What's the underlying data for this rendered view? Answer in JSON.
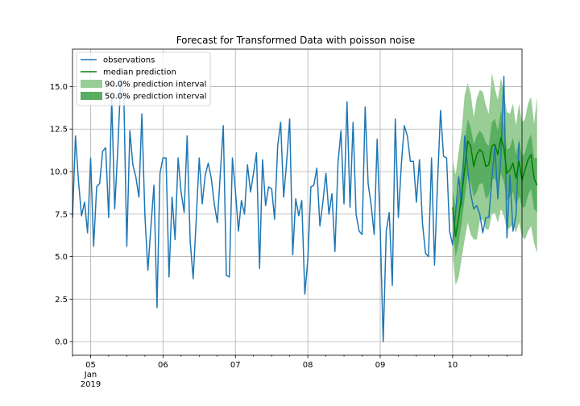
{
  "chart_data": {
    "type": "line",
    "title": "Forecast for Transformed Data with poisson noise",
    "xlabel": "",
    "ylabel": "",
    "grid": true,
    "legend_position": "top-left",
    "x_axis": {
      "type": "datetime",
      "range": [
        "2019-01-04 18:00",
        "2019-01-10 23:00"
      ],
      "tick_labels": [
        {
          "x": "2019-01-05 00:00",
          "label": "05",
          "sub": [
            "Jan",
            "2019"
          ]
        },
        {
          "x": "2019-01-06 00:00",
          "label": "06"
        },
        {
          "x": "2019-01-07 00:00",
          "label": "07"
        },
        {
          "x": "2019-01-08 00:00",
          "label": "08"
        },
        {
          "x": "2019-01-09 00:00",
          "label": "09"
        },
        {
          "x": "2019-01-10 00:00",
          "label": "10"
        }
      ]
    },
    "y_axis": {
      "range": [
        -0.8,
        17.2
      ],
      "ticks": [
        {
          "value": 0.0,
          "label": "0.0"
        },
        {
          "value": 2.5,
          "label": "2.5"
        },
        {
          "value": 5.0,
          "label": "5.0"
        },
        {
          "value": 7.5,
          "label": "7.5"
        },
        {
          "value": 10.0,
          "label": "10.0"
        },
        {
          "value": 12.5,
          "label": "12.5"
        },
        {
          "value": 15.0,
          "label": "15.0"
        }
      ]
    },
    "series": [
      {
        "name": "observations",
        "kind": "line",
        "color": "#1f77b4",
        "start": "2019-01-04 18:00",
        "step_hours": 1,
        "values": [
          7.3,
          12.1,
          9.4,
          7.4,
          8.2,
          6.4,
          10.8,
          5.6,
          9.1,
          9.3,
          11.2,
          11.4,
          7.3,
          14.3,
          7.8,
          11.3,
          15.4,
          14.5,
          5.6,
          12.4,
          10.4,
          9.7,
          8.5,
          13.4,
          7.4,
          4.2,
          6.8,
          9.2,
          2.0,
          9.9,
          10.8,
          10.8,
          3.8,
          8.5,
          6.0,
          10.8,
          8.8,
          7.6,
          12.1,
          5.9,
          3.7,
          7.1,
          10.8,
          8.1,
          9.8,
          10.5,
          9.6,
          8.1,
          7.0,
          9.9,
          12.7,
          3.9,
          3.8,
          10.8,
          8.9,
          6.5,
          8.3,
          7.5,
          10.4,
          8.8,
          9.9,
          11.1,
          4.3,
          10.7,
          8.0,
          9.1,
          9.0,
          7.2,
          11.5,
          12.9,
          8.5,
          10.6,
          13.1,
          5.1,
          8.4,
          7.4,
          8.3,
          2.8,
          4.8,
          9.1,
          9.2,
          10.2,
          6.8,
          8.2,
          9.9,
          7.5,
          8.7,
          5.3,
          10.5,
          12.4,
          8.1,
          14.1,
          7.9,
          12.9,
          7.5,
          6.5,
          6.3,
          13.8,
          9.3,
          8.0,
          6.3,
          11.9,
          6.6,
          0.0,
          6.5,
          7.6,
          3.3,
          13.1,
          7.3,
          10.4,
          12.7,
          12.1,
          10.6,
          10.6,
          8.2,
          10.7,
          7.0,
          5.2,
          5.0,
          10.8,
          4.5,
          9.3,
          13.6,
          10.9,
          10.8,
          6.5,
          5.7,
          7.6,
          9.7,
          8.0,
          12.1,
          10.1,
          8.7,
          7.8,
          8.0,
          7.5,
          6.4,
          7.3,
          7.3,
          9.6,
          11.5,
          8.4,
          10.9,
          15.6,
          6.1,
          9.8,
          6.5,
          7.4,
          11.7
        ]
      },
      {
        "name": "median prediction",
        "kind": "line",
        "color": "#008000",
        "start": "2019-01-10 00:00",
        "step_hours": 1,
        "values": [
          7.9,
          6.2,
          7.3,
          8.6,
          10.1,
          11.8,
          11.5,
          10.3,
          11.0,
          11.3,
          11.1,
          10.3,
          10.4,
          11.5,
          11.6,
          11.0,
          12.0,
          11.4,
          9.9,
          10.1,
          10.5,
          9.6,
          10.6,
          9.5,
          10.1,
          10.7,
          11.0,
          9.6,
          9.2
        ]
      },
      {
        "name": "90.0% prediction interval",
        "kind": "band",
        "color": "#98cd95",
        "start": "2019-01-10 00:00",
        "step_hours": 1,
        "lower": [
          5.2,
          3.3,
          3.8,
          4.9,
          6.0,
          7.0,
          6.3,
          6.0,
          6.0,
          7.1,
          7.2,
          6.6,
          6.6,
          7.5,
          7.6,
          7.0,
          7.8,
          7.4,
          6.6,
          6.7,
          6.9,
          6.4,
          7.0,
          6.2,
          6.0,
          6.5,
          6.8,
          5.8,
          5.2
        ],
        "upper": [
          10.7,
          9.8,
          11.2,
          12.4,
          14.5,
          15.2,
          14.6,
          13.2,
          14.3,
          14.8,
          14.7,
          13.9,
          13.4,
          15.8,
          14.9,
          14.2,
          15.5,
          14.6,
          13.5,
          13.4,
          14.0,
          12.7,
          14.0,
          12.9,
          13.1,
          14.0,
          14.4,
          12.8,
          14.4
        ]
      },
      {
        "name": "50.0% prediction interval",
        "kind": "band",
        "color": "#5aae61",
        "start": "2019-01-10 00:00",
        "step_hours": 1,
        "lower": [
          7.1,
          5.0,
          5.8,
          7.0,
          8.4,
          9.8,
          9.4,
          8.5,
          8.8,
          9.3,
          9.3,
          8.4,
          8.6,
          9.5,
          9.6,
          9.0,
          9.9,
          9.4,
          8.3,
          8.5,
          8.8,
          7.9,
          8.6,
          7.9,
          7.9,
          8.6,
          9.0,
          7.8,
          7.6
        ],
        "upper": [
          8.9,
          7.9,
          8.8,
          10.1,
          11.7,
          13.1,
          12.6,
          11.6,
          12.1,
          12.4,
          12.2,
          11.7,
          11.5,
          12.9,
          13.1,
          12.4,
          13.6,
          12.7,
          11.3,
          11.4,
          12.0,
          11.0,
          11.9,
          10.9,
          11.1,
          11.8,
          12.2,
          10.8,
          10.8
        ]
      }
    ]
  }
}
